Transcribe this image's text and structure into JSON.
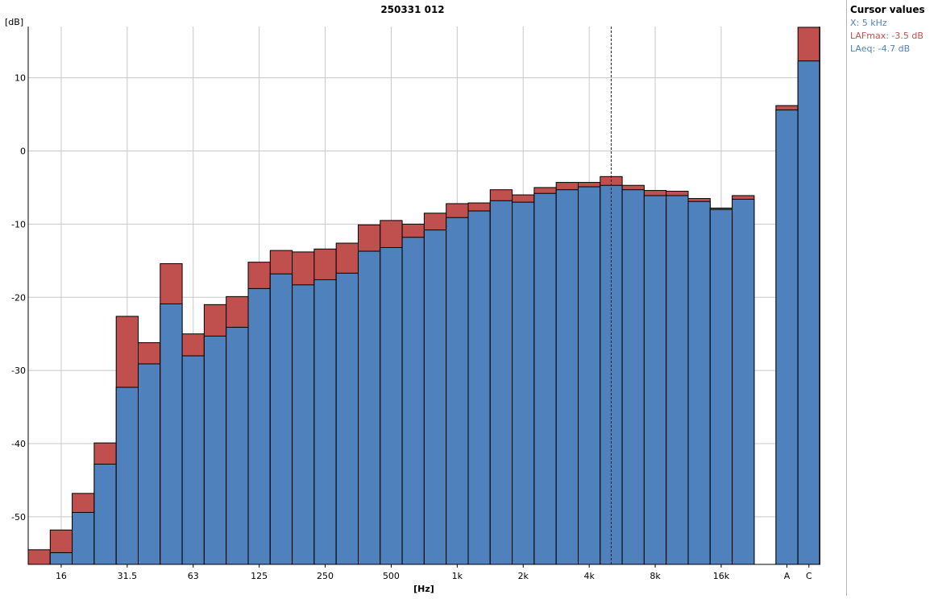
{
  "chart_data": {
    "type": "bar",
    "title": "250331 012",
    "ylabel": "[dB]",
    "xlabel": "[Hz]",
    "ylim": [
      -56.5,
      17
    ],
    "yticks": [
      10,
      0,
      -10,
      -20,
      -30,
      -40,
      -50
    ],
    "grid": true,
    "xtick_labels": [
      "16",
      "31.5",
      "63",
      "125",
      "250",
      "500",
      "1k",
      "2k",
      "4k",
      "8k",
      "16k",
      "A",
      "C"
    ],
    "categories": [
      "12.5",
      "16",
      "20",
      "25",
      "31.5",
      "40",
      "50",
      "63",
      "80",
      "100",
      "125",
      "160",
      "200",
      "250",
      "315",
      "400",
      "500",
      "630",
      "800",
      "1k",
      "1.25k",
      "1.6k",
      "2k",
      "2.5k",
      "3.15k",
      "4k",
      "5k",
      "6.3k",
      "8k",
      "10k",
      "12.5k",
      "16k",
      "20k",
      "A",
      "C"
    ],
    "series": [
      {
        "name": "LAFmax",
        "color": "#c0504d",
        "values": [
          -54.5,
          -51.8,
          -46.8,
          -39.9,
          -22.6,
          -26.2,
          -15.4,
          -25.0,
          -21.0,
          -19.9,
          -15.2,
          -13.6,
          -13.8,
          -13.4,
          -12.6,
          -10.1,
          -9.5,
          -10.0,
          -8.5,
          -7.2,
          -7.1,
          -5.3,
          -6.0,
          -5.0,
          -4.3,
          -4.3,
          -3.5,
          -4.7,
          -5.4,
          -5.5,
          -6.5,
          -7.8,
          -6.1,
          6.2,
          16.9
        ]
      },
      {
        "name": "LAeq",
        "color": "#4f81bd",
        "values": [
          -56.5,
          -54.9,
          -49.4,
          -42.8,
          -32.3,
          -29.1,
          -20.9,
          -28.0,
          -25.3,
          -24.1,
          -18.8,
          -16.8,
          -18.3,
          -17.6,
          -16.7,
          -13.7,
          -13.2,
          -11.8,
          -10.8,
          -9.1,
          -8.2,
          -6.8,
          -7.0,
          -5.8,
          -5.3,
          -4.9,
          -4.7,
          -5.3,
          -6.1,
          -6.1,
          -6.9,
          -8.0,
          -6.6,
          5.6,
          12.3
        ]
      }
    ],
    "cursor": {
      "category": "5k"
    }
  },
  "cursor_panel": {
    "title": "Cursor values",
    "x_text": "X: 5 kHz",
    "lafmax_text": "LAFmax: -3.5 dB",
    "laeq_text": "LAeq: -4.7 dB",
    "x_color": "#4f81bd",
    "lafmax_color": "#c0504d",
    "laeq_color": "#4f81bd"
  }
}
